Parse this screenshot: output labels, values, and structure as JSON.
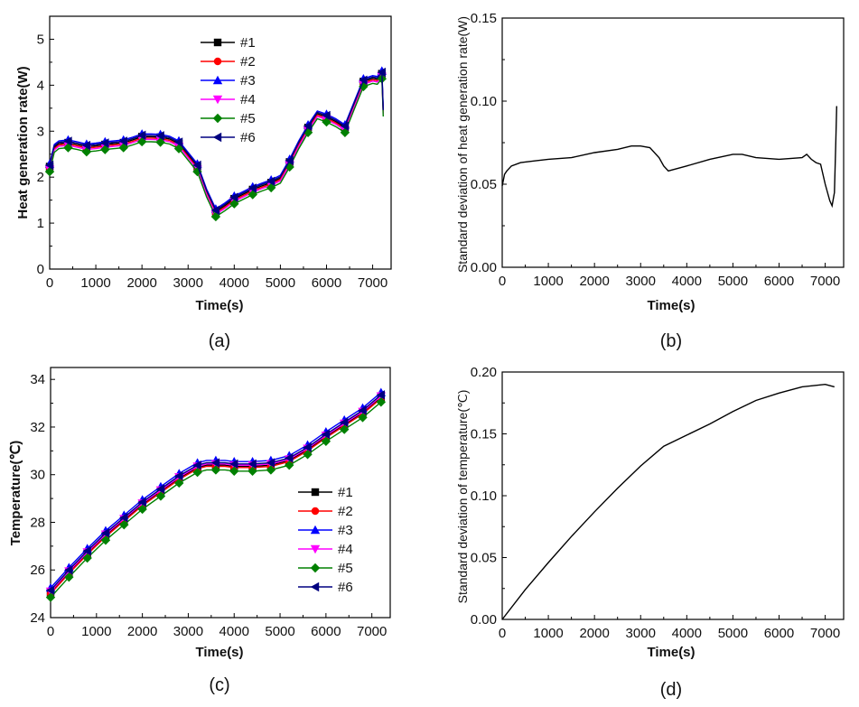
{
  "colors": {
    "s1": "#000000",
    "s2": "#ff0000",
    "s3": "#0000ff",
    "s4": "#ff00ff",
    "s5": "#008000",
    "s6": "#000080",
    "line": "#000000"
  },
  "chart_data": [
    {
      "id": "a",
      "type": "line",
      "caption": "(a)",
      "xlabel": "Time(s)",
      "ylabel": "Heat generation rate(W)",
      "xlim": [
        0,
        7400
      ],
      "ylim": [
        0,
        5.5
      ],
      "xticks": [
        0,
        1000,
        2000,
        3000,
        4000,
        5000,
        6000,
        7000
      ],
      "yticks": [
        0,
        1,
        2,
        3,
        4,
        5
      ],
      "legend": [
        "#1",
        "#2",
        "#3",
        "#4",
        "#5",
        "#6"
      ],
      "markers": [
        "square",
        "circle",
        "triangle-up",
        "triangle-down",
        "diamond",
        "triangle-left"
      ],
      "base": {
        "x": [
          0,
          100,
          200,
          400,
          600,
          800,
          1000,
          1200,
          1400,
          1600,
          1800,
          2000,
          2200,
          2400,
          2600,
          2800,
          3000,
          3200,
          3400,
          3600,
          3800,
          4000,
          4200,
          4400,
          4600,
          4800,
          5000,
          5200,
          5400,
          5600,
          5800,
          6000,
          6200,
          6400,
          6600,
          6800,
          7000,
          7100,
          7200,
          7230
        ],
        "y": [
          2.2,
          2.62,
          2.7,
          2.72,
          2.68,
          2.63,
          2.65,
          2.68,
          2.7,
          2.72,
          2.78,
          2.85,
          2.85,
          2.84,
          2.8,
          2.7,
          2.45,
          2.2,
          1.65,
          1.22,
          1.35,
          1.5,
          1.6,
          1.7,
          1.78,
          1.85,
          1.95,
          2.3,
          2.7,
          3.05,
          3.35,
          3.28,
          3.18,
          3.05,
          3.55,
          4.05,
          4.12,
          4.1,
          4.22,
          3.4
        ]
      },
      "series_offsets": [
        0.03,
        0.0,
        0.09,
        -0.03,
        -0.08,
        0.06
      ],
      "marker_x": [
        0,
        400,
        800,
        1200,
        1600,
        2000,
        2400,
        2800,
        3200,
        3600,
        4000,
        4400,
        4800,
        5200,
        5600,
        6000,
        6400,
        6800,
        7200
      ]
    },
    {
      "id": "b",
      "type": "line",
      "caption": "(b)",
      "xlabel": "Time(s)",
      "ylabel": "Standard deviation of heat generation rate(W)",
      "xlim": [
        0,
        7400
      ],
      "ylim": [
        0,
        0.15
      ],
      "xticks": [
        0,
        1000,
        2000,
        3000,
        4000,
        5000,
        6000,
        7000
      ],
      "yticks": [
        0.0,
        0.05,
        0.1,
        0.15
      ],
      "ytick_labels": [
        "0.00",
        "0.05",
        "0.10",
        "0.15"
      ],
      "x": [
        0,
        50,
        100,
        200,
        400,
        700,
        1000,
        1500,
        2000,
        2500,
        2800,
        3000,
        3200,
        3400,
        3500,
        3600,
        4000,
        4500,
        5000,
        5200,
        5500,
        6000,
        6500,
        6600,
        6700,
        6800,
        6900,
        7000,
        7100,
        7150,
        7200,
        7230,
        7250
      ],
      "y": [
        0.049,
        0.056,
        0.058,
        0.061,
        0.063,
        0.064,
        0.065,
        0.066,
        0.069,
        0.071,
        0.073,
        0.073,
        0.072,
        0.066,
        0.061,
        0.058,
        0.061,
        0.065,
        0.068,
        0.068,
        0.066,
        0.065,
        0.066,
        0.068,
        0.065,
        0.063,
        0.062,
        0.05,
        0.04,
        0.037,
        0.045,
        0.075,
        0.097
      ]
    },
    {
      "id": "c",
      "type": "line",
      "caption": "(c)",
      "xlabel": "Time(s)",
      "ylabel": "Temperature(℃)",
      "xlim": [
        0,
        7400
      ],
      "ylim": [
        24,
        34.5
      ],
      "xticks": [
        0,
        1000,
        2000,
        3000,
        4000,
        5000,
        6000,
        7000
      ],
      "yticks": [
        24,
        26,
        28,
        30,
        32,
        34
      ],
      "legend": [
        "#1",
        "#2",
        "#3",
        "#4",
        "#5",
        "#6"
      ],
      "markers": [
        "square",
        "circle",
        "triangle-up",
        "triangle-down",
        "diamond",
        "triangle-left"
      ],
      "base": {
        "x": [
          0,
          400,
          800,
          1200,
          1600,
          2000,
          2400,
          2800,
          3200,
          3400,
          3600,
          3800,
          4000,
          4400,
          4800,
          5200,
          5600,
          6000,
          6400,
          6800,
          7200
        ],
        "y": [
          25.0,
          25.85,
          26.65,
          27.4,
          28.05,
          28.7,
          29.25,
          29.8,
          30.25,
          30.35,
          30.35,
          30.35,
          30.3,
          30.3,
          30.35,
          30.55,
          31.0,
          31.55,
          32.05,
          32.55,
          33.2
        ]
      },
      "series_offsets": [
        0.05,
        0.0,
        0.25,
        0.1,
        -0.15,
        0.15
      ],
      "marker_x": [
        0,
        400,
        800,
        1200,
        1600,
        2000,
        2400,
        2800,
        3200,
        3600,
        4000,
        4400,
        4800,
        5200,
        5600,
        6000,
        6400,
        6800,
        7200
      ]
    },
    {
      "id": "d",
      "type": "line",
      "caption": "(d)",
      "xlabel": "Time(s)",
      "ylabel": "Standard deviation of temperature(℃)",
      "xlim": [
        0,
        7400
      ],
      "ylim": [
        0,
        0.2
      ],
      "xticks": [
        0,
        1000,
        2000,
        3000,
        4000,
        5000,
        6000,
        7000
      ],
      "yticks": [
        0.0,
        0.05,
        0.1,
        0.15,
        0.2
      ],
      "ytick_labels": [
        "0.00",
        "0.05",
        "0.10",
        "0.15",
        "0.20"
      ],
      "x": [
        0,
        500,
        1000,
        1500,
        2000,
        2500,
        3000,
        3500,
        4000,
        4500,
        5000,
        5500,
        6000,
        6500,
        7000,
        7200
      ],
      "y": [
        0,
        0.024,
        0.046,
        0.067,
        0.087,
        0.106,
        0.124,
        0.14,
        0.149,
        0.158,
        0.168,
        0.177,
        0.183,
        0.188,
        0.19,
        0.188
      ]
    }
  ]
}
